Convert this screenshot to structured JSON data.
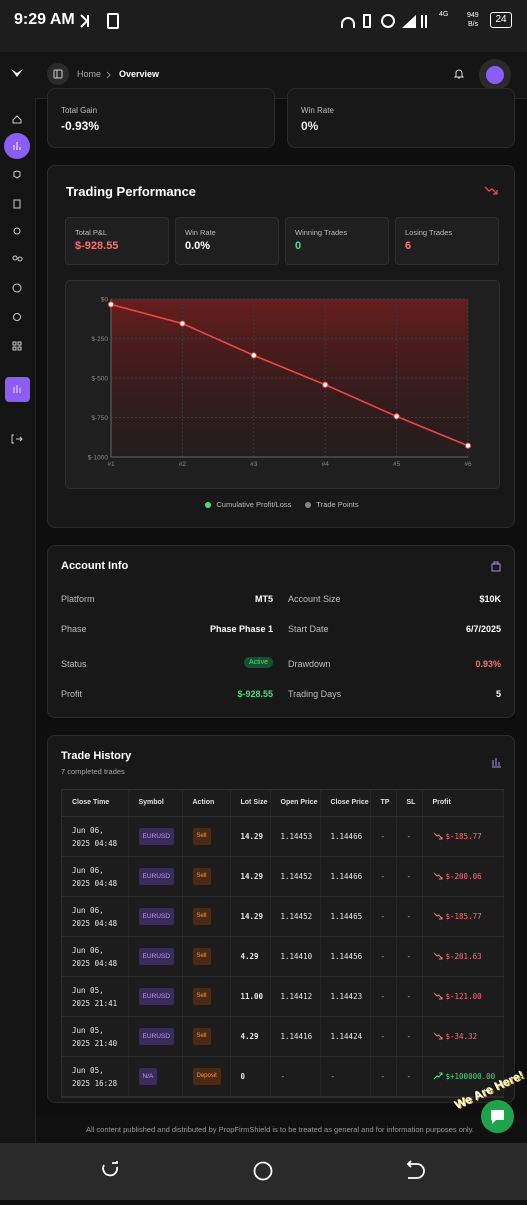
{
  "status_bar": {
    "time": "9:29 AM",
    "network": "4G",
    "speed": "949",
    "speed_unit": "B/s",
    "battery": "24"
  },
  "header": {
    "breadcrumb": [
      "Home",
      "Overview"
    ]
  },
  "summary": [
    {
      "label": "Total Gain",
      "value": "-0.93%"
    },
    {
      "label": "Win Rate",
      "value": "0%"
    }
  ],
  "trading_performance": {
    "title": "Trading Performance",
    "stats": [
      {
        "label": "Total P&L",
        "value": "$-928.55"
      },
      {
        "label": "Win Rate",
        "value": "0.0%"
      },
      {
        "label": "Winning Trades",
        "value": "0"
      },
      {
        "label": "Losing Trades",
        "value": "6"
      }
    ],
    "chart": {
      "type": "line",
      "categories": [
        "#1",
        "#2",
        "#3",
        "#4",
        "#5",
        "#6"
      ],
      "series": [
        {
          "name": "Cumulative Profit/Loss",
          "color": "#ef4444",
          "values": [
            -34.32,
            -155.32,
            -356.95,
            -542.72,
            -742.78,
            -928.55
          ]
        }
      ],
      "points_legend": "Trade Points",
      "ylim": [
        -1000,
        0
      ],
      "yticks": [
        {
          "value": 0,
          "label": "$0"
        },
        {
          "value": -250,
          "label": "$-250"
        },
        {
          "value": -500,
          "label": "$-500"
        },
        {
          "value": -750,
          "label": "$-750"
        },
        {
          "value": -1000,
          "label": "$-1000"
        }
      ],
      "grid": true
    }
  },
  "account_info": {
    "title": "Account Info",
    "rows": [
      [
        {
          "label": "Platform",
          "value": "MT5"
        },
        {
          "label": "Account Size",
          "value": "$10K"
        }
      ],
      [
        {
          "label": "Phase",
          "value": "Phase Phase 1"
        },
        {
          "label": "Start Date",
          "value": "6/7/2025"
        }
      ],
      [
        {
          "label": "Status",
          "value": "Active"
        },
        {
          "label": "Drawdown",
          "value": "0.93%"
        }
      ],
      [
        {
          "label": "Profit",
          "value": "$-928.55"
        },
        {
          "label": "Trading Days",
          "value": "5"
        }
      ]
    ]
  },
  "trade_history": {
    "title": "Trade History",
    "subtitle": "7 completed trades",
    "columns": [
      "Close Time",
      "Symbol",
      "Action",
      "Lot Size",
      "Open Price",
      "Close Price",
      "TP",
      "SL",
      "Profit"
    ],
    "rows": [
      [
        "Jun 06, 2025 04:48",
        "EURUSD",
        "Sell",
        "14.29",
        "1.14453",
        "1.14466",
        "-",
        "-",
        "$-185.77"
      ],
      [
        "Jun 06, 2025 04:48",
        "EURUSD",
        "Sell",
        "14.29",
        "1.14452",
        "1.14466",
        "-",
        "-",
        "$-200.06"
      ],
      [
        "Jun 06, 2025 04:48",
        "EURUSD",
        "Sell",
        "14.29",
        "1.14452",
        "1.14465",
        "-",
        "-",
        "$-185.77"
      ],
      [
        "Jun 06, 2025 04:48",
        "EURUSD",
        "Sell",
        "4.29",
        "1.14410",
        "1.14456",
        "-",
        "-",
        "$-201.63"
      ],
      [
        "Jun 05, 2025 21:41",
        "EURUSD",
        "Sell",
        "11.00",
        "1.14412",
        "1.14423",
        "-",
        "-",
        "$-121.00"
      ],
      [
        "Jun 05, 2025 21:40",
        "EURUSD",
        "Sell",
        "4.29",
        "1.14416",
        "1.14424",
        "-",
        "-",
        "$-34.32"
      ],
      [
        "Jun 05, 2025 16:28",
        "N/A",
        "Deposit",
        "0",
        "-",
        "-",
        "-",
        "-",
        "$+100000.00"
      ]
    ]
  },
  "footer": {
    "text": "All content published and distributed by PropFirmShield is to be treated as general and for information purposes only."
  },
  "chat_widget": {
    "label": "We Are Here!"
  }
}
